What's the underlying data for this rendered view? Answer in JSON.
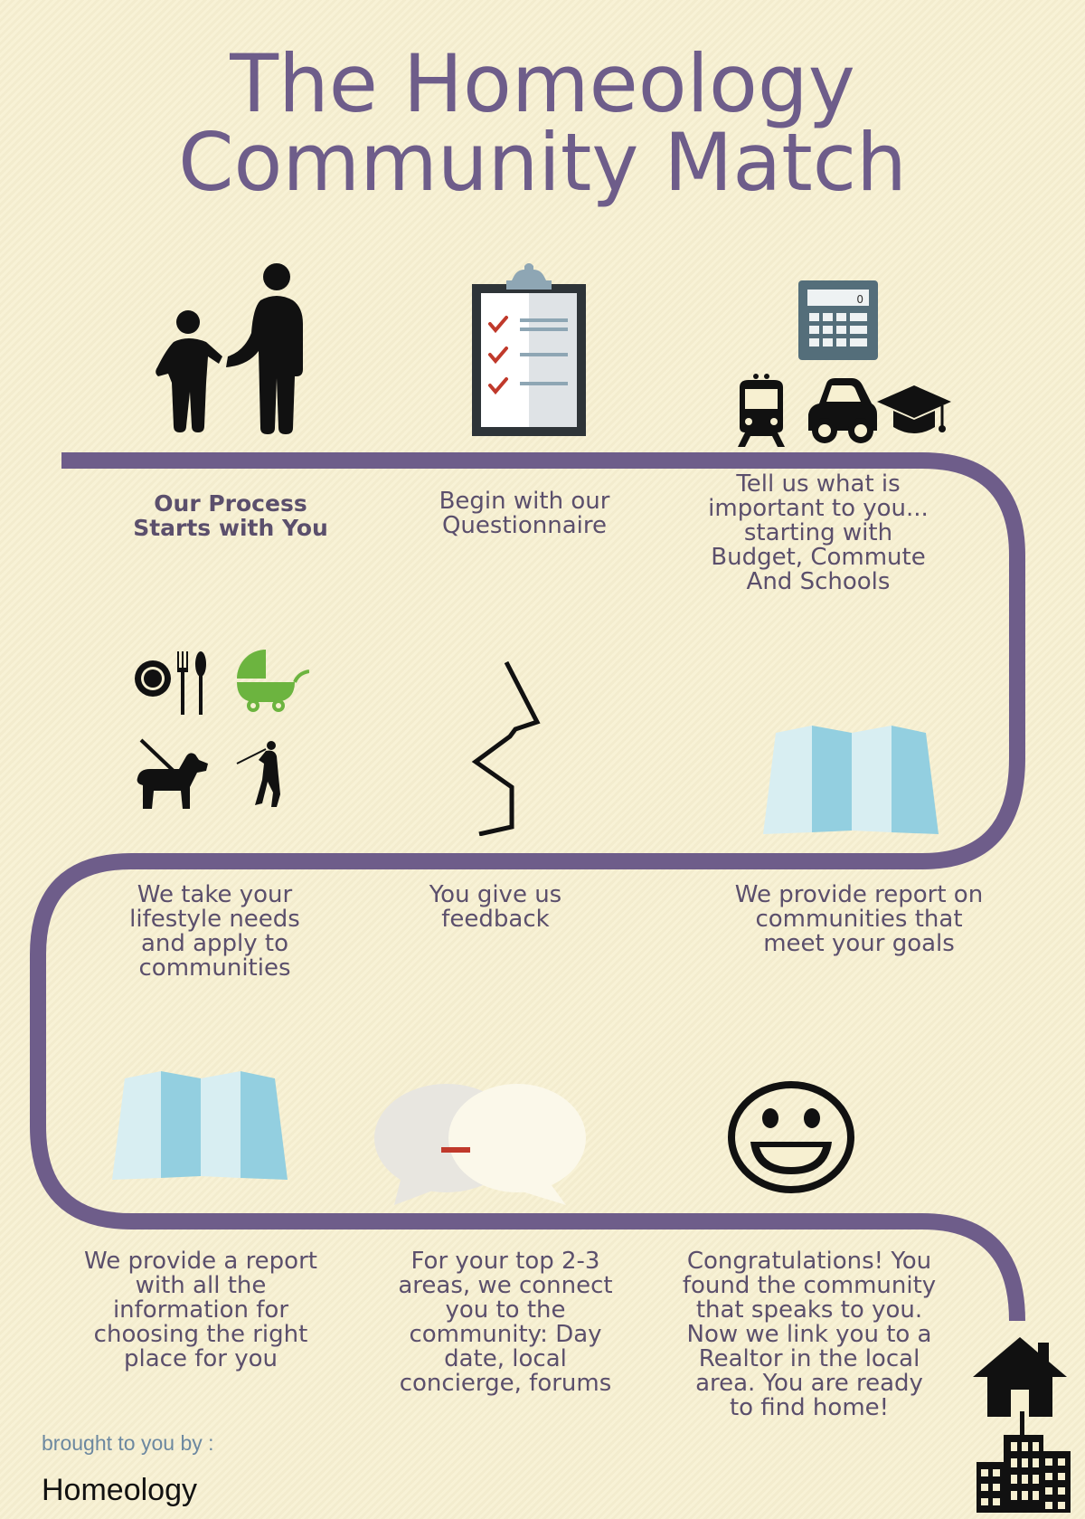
{
  "title": {
    "line1": "The Homeology",
    "line2": "Community Match"
  },
  "steps": [
    {
      "caption": "Our Process\nStarts with You",
      "icons": [
        "parent-child-icon"
      ]
    },
    {
      "caption": "Begin with our\nQuestionnaire",
      "icons": [
        "clipboard-checklist-icon"
      ]
    },
    {
      "caption": "Tell us what is\nimportant to you...\nstarting with\nBudget, Commute\nAnd Schools",
      "icons": [
        "calculator-icon",
        "train-icon",
        "car-icon",
        "graduation-cap-icon"
      ]
    },
    {
      "caption": "We take your\nlifestyle needs\nand apply to\ncommunities",
      "icons": [
        "dining-icon",
        "stroller-icon",
        "dog-walking-icon",
        "golfer-icon"
      ]
    },
    {
      "caption": "You give us\nfeedback",
      "icons": [
        "zigzag-line-icon"
      ]
    },
    {
      "caption": "We provide report on\ncommunities that\nmeet your goals",
      "icons": [
        "map-icon"
      ]
    },
    {
      "caption": "We provide a report\nwith all the\ninformation for\nchoosing the right\nplace for you",
      "icons": [
        "map-icon"
      ]
    },
    {
      "caption": "For your top 2-3\nareas, we connect\nyou to the\ncommunity:  Day\ndate, local\nconcierge, forums",
      "icons": [
        "speech-bubbles-icon"
      ]
    },
    {
      "caption": "Congratulations!  You\nfound the community\nthat speaks to you.\nNow we link you to a\nRealtor in the local\narea.  You are ready\nto find home!",
      "icons": [
        "smiley-face-icon"
      ]
    }
  ],
  "end_icons": [
    "house-icon",
    "city-buildings-icon"
  ],
  "footer": {
    "brought_by": "brought to you by :",
    "brand": "Homeology"
  },
  "colors": {
    "background": "#f7f0d1",
    "path": "#6e5d8a",
    "title": "#6e5d8a",
    "caption": "#5b4f6c",
    "map_blue": "#93cfe0",
    "map_light": "#d8eef2",
    "stroller_green": "#6cb43f",
    "check_red": "#c0392b"
  }
}
